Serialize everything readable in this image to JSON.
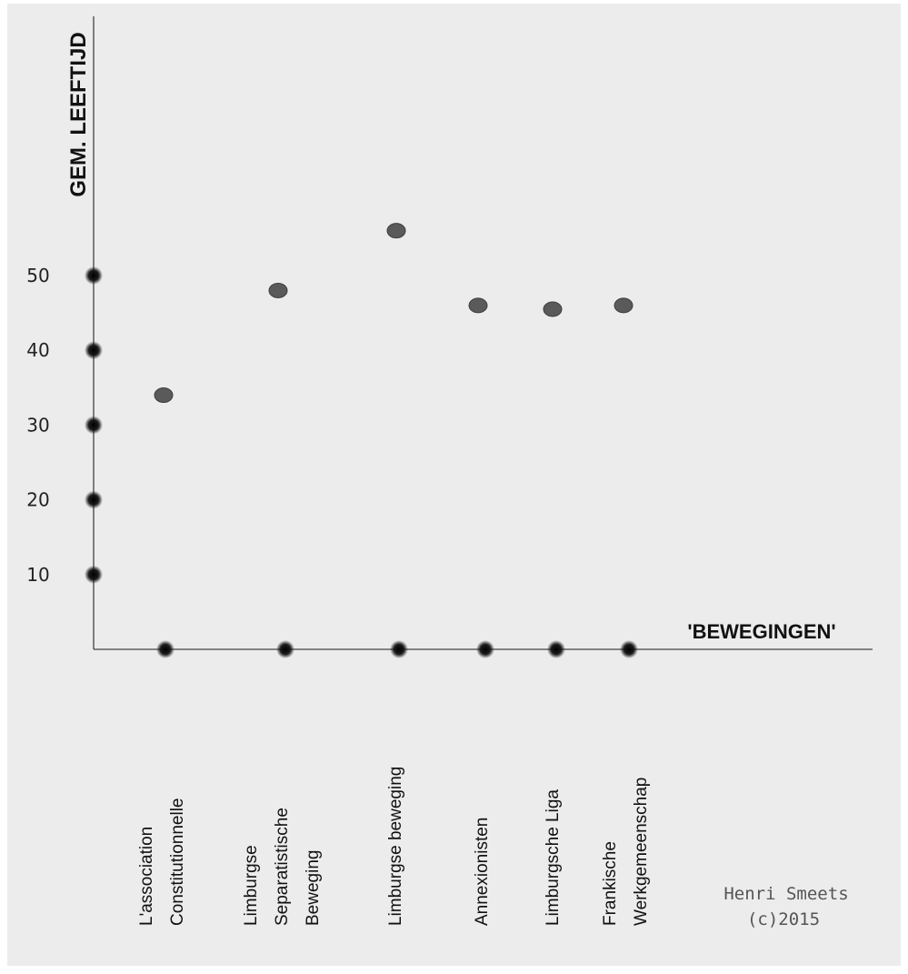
{
  "chart_data": {
    "type": "scatter",
    "ylabel": "GEM. LEEFTIJD",
    "xlabel": "'BEWEGINGEN'",
    "yticks": [
      "10",
      "20",
      "30",
      "40",
      "50"
    ],
    "ylim": [
      0,
      60
    ],
    "categories": [
      [
        "L'association",
        "Constitutionnelle"
      ],
      [
        "Limburgse",
        "Separatistische",
        "Beweging"
      ],
      [
        "Limburgse beweging"
      ],
      [
        "Annexionisten"
      ],
      [
        "Limburgsche Liga"
      ],
      [
        "Frankische",
        "Werkgemeenschap"
      ]
    ],
    "values": [
      34,
      48,
      56,
      46,
      45.5,
      46
    ],
    "grid": false,
    "marker_color": "#5a5a5a",
    "tick_marker_color": "#111111"
  },
  "credit": {
    "author": "Henri Smeets",
    "year": "(c)2015"
  }
}
